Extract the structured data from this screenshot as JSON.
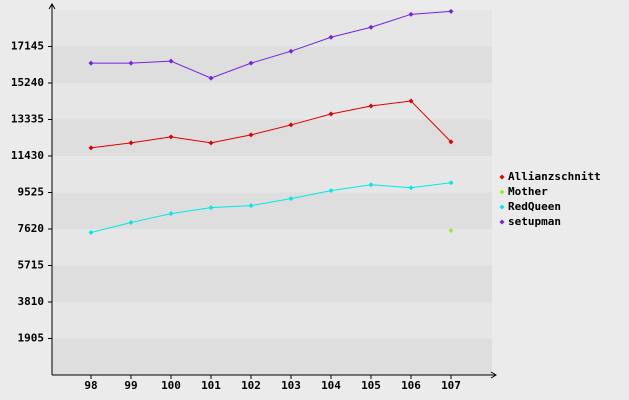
{
  "chart_data": {
    "type": "line",
    "categories": [
      "98",
      "99",
      "100",
      "101",
      "102",
      "103",
      "104",
      "105",
      "106",
      "107"
    ],
    "series": [
      {
        "name": "Allianzschnitt",
        "color": "#dd0000",
        "values": [
          11856,
          12116,
          12428,
          12116,
          12532,
          13052,
          13624,
          14040,
          14300,
          12168
        ]
      },
      {
        "name": "Mother",
        "color": "#99ee22",
        "values": [
          null,
          null,
          null,
          null,
          null,
          null,
          null,
          null,
          null,
          7540
        ]
      },
      {
        "name": "RedQueen",
        "color": "#00e8e8",
        "values": [
          7436,
          7956,
          8424,
          8736,
          8840,
          9204,
          9620,
          9932,
          9776,
          10036
        ]
      },
      {
        "name": "setupman",
        "color": "#7722dd",
        "values": [
          16276,
          16276,
          16380,
          15496,
          16276,
          16900,
          17628,
          18148,
          18824,
          18980
        ]
      }
    ],
    "ylim": [
      0,
      19050
    ],
    "yticks": [
      1905,
      3810,
      5715,
      7620,
      9525,
      11430,
      13335,
      15240,
      17145
    ],
    "legend": "right"
  }
}
